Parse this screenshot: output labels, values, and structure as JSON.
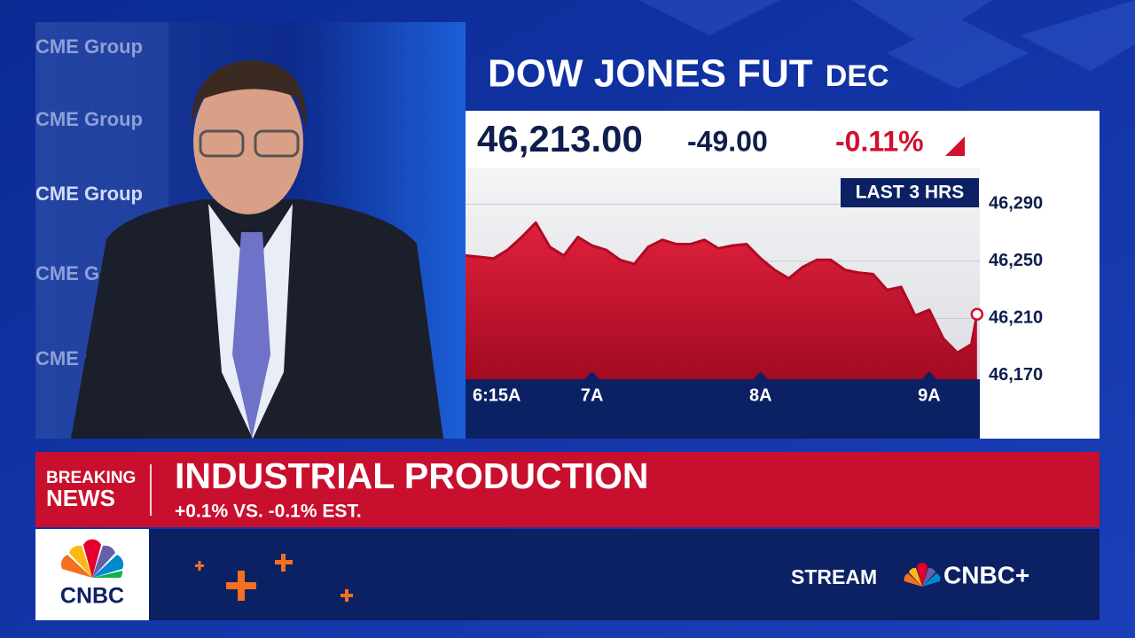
{
  "background_text": "CME Group",
  "chart_data": {
    "type": "area",
    "title": "DOW JONES FUT",
    "subtitle": "DEC",
    "price": "46,213.00",
    "change": "-49.00",
    "change_pct": "-0.11%",
    "range_label": "LAST 3 HRS",
    "color": "#d0102e",
    "x": [
      375,
      380,
      385,
      390,
      395,
      400,
      405,
      410,
      415,
      420,
      425,
      430,
      435,
      440,
      445,
      450,
      455,
      460,
      465,
      470,
      475,
      480,
      485,
      490,
      495,
      500,
      505,
      510,
      515,
      520,
      525,
      530,
      535,
      540,
      545,
      550,
      555,
      557
    ],
    "values": [
      46254,
      46253,
      46252,
      46258,
      46267,
      46277,
      46260,
      46254,
      46267,
      46261,
      46258,
      46251,
      46248,
      46260,
      46265,
      46262,
      46262,
      46265,
      46259,
      46261,
      46262,
      46252,
      46244,
      46238,
      46246,
      46251,
      46251,
      46244,
      46242,
      46241,
      46230,
      46232,
      46212,
      46216,
      46196,
      46186,
      46192,
      46213
    ],
    "xlim": [
      375,
      558
    ],
    "xticks": [
      {
        "value": 375,
        "label": "6:15A"
      },
      {
        "value": 420,
        "label": "7A"
      },
      {
        "value": 480,
        "label": "8A"
      },
      {
        "value": 540,
        "label": "9A"
      }
    ],
    "ylim": [
      46167.5,
      46315
    ],
    "yticks": [
      {
        "value": 46290,
        "label": "46,290"
      },
      {
        "value": 46250,
        "label": "46,250"
      },
      {
        "value": 46210,
        "label": "46,210"
      },
      {
        "value": 46170,
        "label": "46,170"
      }
    ],
    "grid": true
  },
  "lower_third": {
    "tag_line1": "BREAKING",
    "tag_line2": "NEWS",
    "headline": "INDUSTRIAL PRODUCTION",
    "subhead": "+0.1% VS. -0.1% EST."
  },
  "footer": {
    "logo": "CNBC",
    "stream": "STREAM",
    "brand": "CNBC+"
  }
}
